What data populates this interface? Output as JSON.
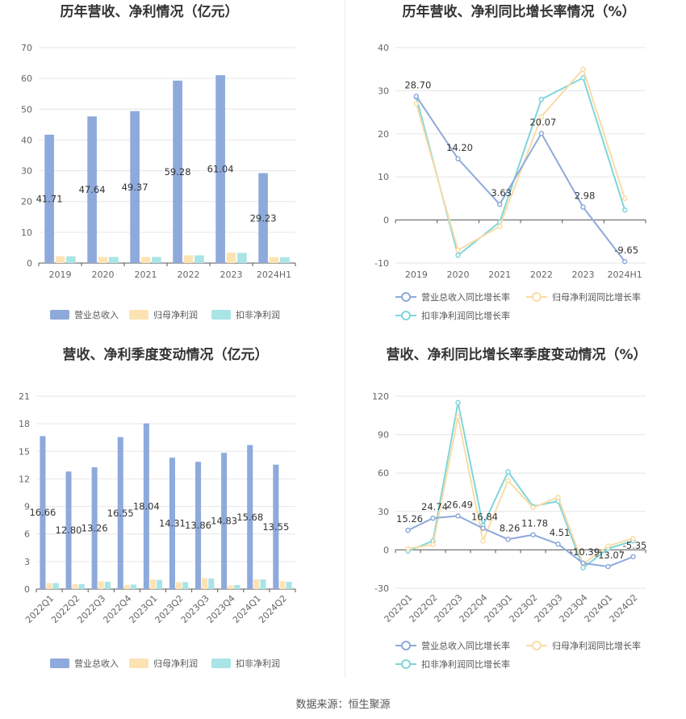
{
  "source": "数据来源：恒生聚源",
  "colors": {
    "revenue": "#8eaadc",
    "parent": "#fde3b4",
    "nonrec": "#a9e4e6",
    "revenue_line": "#8eaadc",
    "parent_line": "#f9dca6",
    "nonrec_line": "#7fd6da"
  },
  "chart_data": [
    {
      "type": "bar",
      "title": "历年营收、净利情况（亿元）",
      "categories": [
        "2019",
        "2020",
        "2021",
        "2022",
        "2023",
        "2024H1"
      ],
      "series": [
        {
          "name": "营业总收入",
          "values": [
            41.71,
            47.64,
            49.37,
            59.28,
            61.04,
            29.23
          ]
        },
        {
          "name": "归母净利润",
          "values": [
            2.2,
            2.0,
            2.0,
            2.5,
            3.4,
            1.9
          ]
        },
        {
          "name": "扣非净利润",
          "values": [
            2.2,
            2.0,
            2.0,
            2.5,
            3.3,
            1.9
          ]
        }
      ],
      "data_labels": [
        "41.71",
        "47.64",
        "49.37",
        "59.28",
        "61.04",
        "29.23"
      ],
      "yticks": [
        "0",
        "10",
        "20",
        "30",
        "40",
        "50",
        "60",
        "70"
      ],
      "ylim": [
        0,
        70
      ],
      "legend_position": "bottom"
    },
    {
      "type": "line",
      "title": "历年营收、净利同比增长率情况（%）",
      "categories": [
        "2019",
        "2020",
        "2021",
        "2022",
        "2023",
        "2024H1"
      ],
      "series": [
        {
          "name": "营业总收入同比增长率",
          "values": [
            28.7,
            14.2,
            3.63,
            20.07,
            2.98,
            -9.65
          ]
        },
        {
          "name": "归母净利润同比增长率",
          "values": [
            27.0,
            -7.0,
            -1.5,
            24.0,
            35.0,
            5.0
          ]
        },
        {
          "name": "扣非净利润同比增长率",
          "values": [
            28.5,
            -8.2,
            -0.5,
            28.0,
            33.0,
            2.3
          ]
        }
      ],
      "data_labels": [
        "28.70",
        "14.20",
        "3.63",
        "20.07",
        "2.98",
        "-9.65"
      ],
      "yticks": [
        "-10",
        "0",
        "10",
        "20",
        "30",
        "40"
      ],
      "ylim": [
        -10,
        40
      ],
      "legend_position": "bottom"
    },
    {
      "type": "bar",
      "title": "营收、净利季度变动情况（亿元）",
      "categories": [
        "2022Q1",
        "2022Q2",
        "2022Q3",
        "2022Q4",
        "2023Q1",
        "2023Q2",
        "2023Q3",
        "2023Q4",
        "2024Q1",
        "2024Q2"
      ],
      "series": [
        {
          "name": "营业总收入",
          "values": [
            16.66,
            12.8,
            13.26,
            16.55,
            18.04,
            14.31,
            13.86,
            14.83,
            15.68,
            13.55
          ]
        },
        {
          "name": "归母净利润",
          "values": [
            0.65,
            0.55,
            0.85,
            0.45,
            1.05,
            0.75,
            1.2,
            0.4,
            1.05,
            0.85
          ]
        },
        {
          "name": "扣非净利润",
          "values": [
            0.65,
            0.55,
            0.8,
            0.5,
            1.0,
            0.75,
            1.15,
            0.45,
            1.05,
            0.8
          ]
        }
      ],
      "data_labels": [
        "16.66",
        "12.80",
        "13.26",
        "16.55",
        "18.04",
        "14.31",
        "13.86",
        "14.83",
        "15.68",
        "13.55"
      ],
      "yticks": [
        "0",
        "3",
        "6",
        "9",
        "12",
        "15",
        "18",
        "21"
      ],
      "ylim": [
        0,
        21
      ],
      "legend_position": "bottom"
    },
    {
      "type": "line",
      "title": "营收、净利同比增长率季度变动情况（%）",
      "categories": [
        "2022Q1",
        "2022Q2",
        "2022Q3",
        "2022Q4",
        "2023Q1",
        "2023Q2",
        "2023Q3",
        "2023Q4",
        "2024Q1",
        "2024Q2"
      ],
      "series": [
        {
          "name": "营业总收入同比增长率",
          "values": [
            15.26,
            24.74,
            26.49,
            16.84,
            8.26,
            11.78,
            4.51,
            -10.39,
            -13.07,
            -5.35
          ]
        },
        {
          "name": "归母净利润同比增长率",
          "values": [
            1.0,
            4.0,
            104.0,
            7.0,
            54.0,
            33.0,
            41.0,
            -11.0,
            3.0,
            9.0
          ]
        },
        {
          "name": "扣非净利润同比增长率",
          "values": [
            -1.0,
            7.0,
            115.0,
            19.0,
            61.0,
            34.0,
            38.0,
            -14.0,
            1.0,
            7.0
          ]
        }
      ],
      "data_labels": [
        "15.26",
        "24.74",
        "26.49",
        "16.84",
        "8.26",
        "11.78",
        "4.51",
        "-10.39",
        "-13.07",
        "-5.35"
      ],
      "yticks": [
        "-30",
        "0",
        "30",
        "60",
        "90",
        "120"
      ],
      "ylim": [
        -30,
        120
      ],
      "legend_position": "bottom"
    }
  ]
}
